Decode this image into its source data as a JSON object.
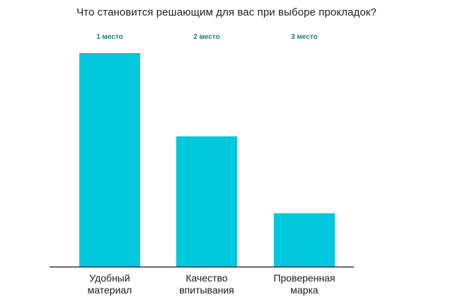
{
  "chart_data": {
    "type": "bar",
    "title": "Что становится решающим для вас при выборе прокладок?",
    "categories": [
      [
        "Удобный",
        "материал"
      ],
      [
        "Качество",
        "впитывания"
      ],
      [
        "Проверенная",
        "марка"
      ]
    ],
    "rank_labels": [
      "1 место",
      "2 место",
      "3 место"
    ],
    "values": [
      100,
      61,
      25
    ],
    "ylim": [
      0,
      100
    ],
    "grid": false,
    "xlabel": "",
    "ylabel": "",
    "bar_color": "#00c8dc",
    "axis_color": "#333333",
    "rank_label_color": "#1f7f6f"
  }
}
